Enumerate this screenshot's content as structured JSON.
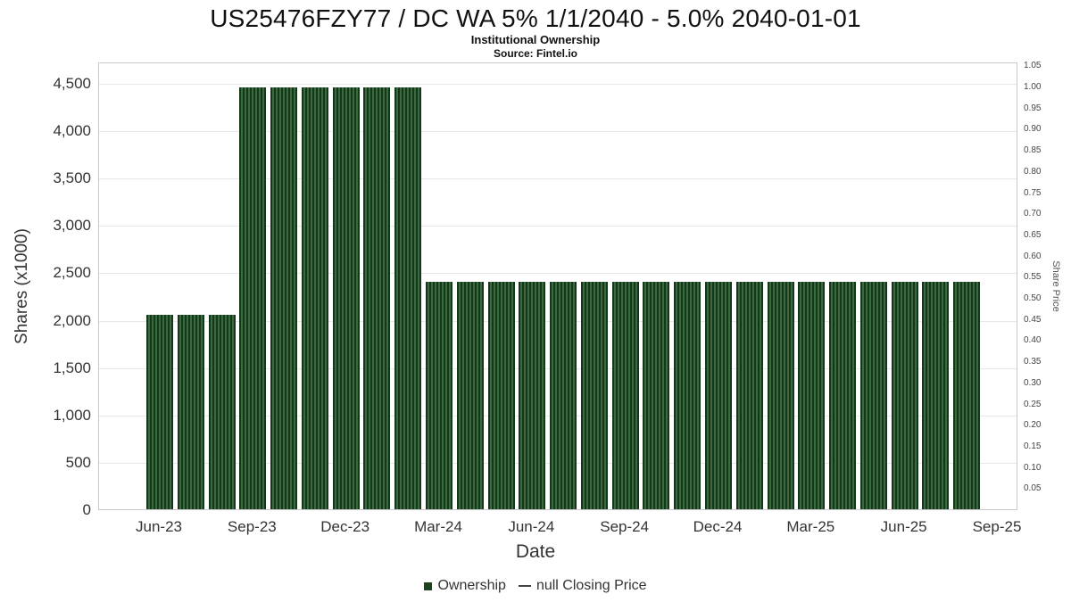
{
  "chart_data": {
    "type": "bar",
    "title": "US25476FZY77 / DC WA 5% 1/1/2040 - 5.0% 2040-01-01",
    "subtitle": "Institutional Ownership",
    "source": "Source: Fintel.io",
    "xlabel": "Date",
    "ylabel_left": "Shares (x1000)",
    "ylabel_right": "Share Price",
    "grid": true,
    "legend_position": "bottom",
    "ylim_left": [
      0,
      4500
    ],
    "ylim_right": [
      0,
      1.05
    ],
    "categories": [
      "Jun-23",
      "Jul-23",
      "Aug-23",
      "Sep-23",
      "Oct-23",
      "Nov-23",
      "Dec-23",
      "Jan-24",
      "Feb-24",
      "Mar-24",
      "Apr-24",
      "May-24",
      "Jun-24",
      "Jul-24",
      "Aug-24",
      "Sep-24",
      "Oct-24",
      "Nov-24",
      "Dec-24",
      "Jan-25",
      "Feb-25",
      "Mar-25",
      "Apr-25",
      "May-25",
      "Jun-25",
      "Jul-25",
      "Aug-25"
    ],
    "series": [
      {
        "name": "Ownership",
        "color": "#1c4220",
        "values": [
          2050,
          2050,
          2050,
          4450,
          4450,
          4450,
          4450,
          4450,
          4450,
          2400,
          2400,
          2400,
          2400,
          2400,
          2400,
          2400,
          2400,
          2400,
          2400,
          2400,
          2400,
          2400,
          2400,
          2400,
          2400,
          2400,
          2400
        ]
      }
    ],
    "left_ticks": {
      "values": [
        0,
        500,
        1000,
        1500,
        2000,
        2500,
        3000,
        3500,
        4000,
        4500
      ],
      "labels": [
        "0",
        "500",
        "1,000",
        "1,500",
        "2,000",
        "2,500",
        "3,000",
        "3,500",
        "4,000",
        "4,500"
      ]
    },
    "right_ticks": {
      "values": [
        0.05,
        0.1,
        0.15,
        0.2,
        0.25,
        0.3,
        0.35,
        0.4,
        0.45,
        0.5,
        0.55,
        0.6,
        0.65,
        0.7,
        0.75,
        0.8,
        0.85,
        0.9,
        0.95,
        1.0,
        1.05
      ],
      "labels": [
        "0.05",
        "0.10",
        "0.15",
        "0.20",
        "0.25",
        "0.30",
        "0.35",
        "0.40",
        "0.45",
        "0.50",
        "0.55",
        "0.60",
        "0.65",
        "0.70",
        "0.75",
        "0.80",
        "0.85",
        "0.90",
        "0.95",
        "1.00",
        "1.05"
      ]
    },
    "x_ticks": {
      "month_index": [
        0,
        3,
        6,
        9,
        12,
        15,
        18,
        21,
        24,
        27
      ],
      "labels": [
        "Jun-23",
        "Sep-23",
        "Dec-23",
        "Mar-24",
        "Jun-24",
        "Sep-24",
        "Dec-24",
        "Mar-25",
        "Jun-25",
        "Sep-25"
      ]
    },
    "legend": [
      {
        "label": "Ownership",
        "marker": "square",
        "color": "#1c4220"
      },
      {
        "label": "null Closing Price",
        "marker": "dash",
        "color": "#444444"
      }
    ],
    "bar_stripe_dark": "#143619",
    "bar_stripe_light": "#3a6a3f"
  }
}
